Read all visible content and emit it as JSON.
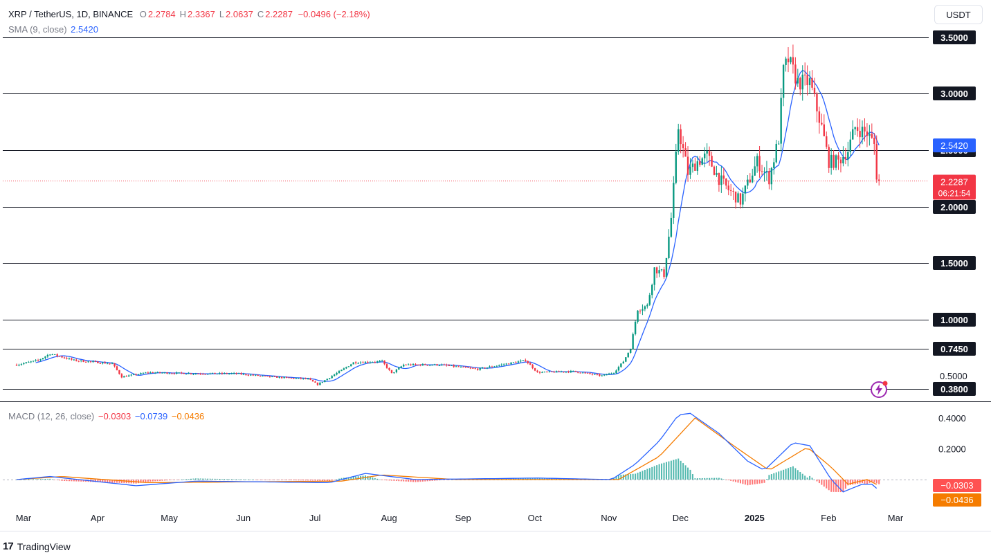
{
  "header": {
    "symbol": "XRP / TetherUS, 1D, BINANCE",
    "ohlc": [
      {
        "key": "O",
        "value": "2.2784"
      },
      {
        "key": "H",
        "value": "2.3367"
      },
      {
        "key": "L",
        "value": "2.0637"
      },
      {
        "key": "C",
        "value": "2.2287"
      }
    ],
    "change": "−0.0496 (−2.18%)",
    "currency_button": "USDT"
  },
  "sma_legend": {
    "label": "SMA (9, close)",
    "value": "2.5420"
  },
  "macd_legend": {
    "label": "MACD (12, 26, close)",
    "hist": "−0.0303",
    "macd": "−0.0739",
    "signal": "−0.0436"
  },
  "brand": "TradingView",
  "colors": {
    "up": "#089981",
    "down": "#f23645",
    "sma": "#2962ff",
    "macd": "#2962ff",
    "signal": "#f57c00"
  },
  "chart_data": [
    {
      "type": "candlestick",
      "title": "XRP / TetherUS, 1D, BINANCE",
      "x_ticks": [
        "Mar",
        "Apr",
        "May",
        "Jun",
        "Jul",
        "Aug",
        "Sep",
        "Oct",
        "Nov",
        "Dec",
        "2025",
        "Feb",
        "Mar"
      ],
      "y_ticks": [
        "3.5000",
        "3.0000",
        "2.5000",
        "2.0000",
        "1.5000",
        "1.0000",
        "0.7450",
        "0.5000",
        "0.3800"
      ],
      "horizontal_levels": [
        3.5,
        3.0,
        2.5,
        2.0,
        1.5,
        1.0,
        0.745,
        0.38
      ],
      "price_labels": {
        "sma": "2.5420",
        "last": "2.2287",
        "countdown": "06:21:54"
      },
      "last_price": 2.2287,
      "sma_value": 2.542,
      "ylim": [
        0.3,
        3.55
      ],
      "close_path": [
        [
          "2024-03-01",
          0.6
        ],
        [
          "2024-03-10",
          0.64
        ],
        [
          "2024-03-15",
          0.7
        ],
        [
          "2024-03-25",
          0.64
        ],
        [
          "2024-04-10",
          0.61
        ],
        [
          "2024-04-14",
          0.49
        ],
        [
          "2024-04-25",
          0.53
        ],
        [
          "2024-05-15",
          0.52
        ],
        [
          "2024-06-01",
          0.52
        ],
        [
          "2024-06-15",
          0.49
        ],
        [
          "2024-07-01",
          0.47
        ],
        [
          "2024-07-05",
          0.42
        ],
        [
          "2024-07-15",
          0.55
        ],
        [
          "2024-07-20",
          0.62
        ],
        [
          "2024-08-01",
          0.63
        ],
        [
          "2024-08-05",
          0.52
        ],
        [
          "2024-08-10",
          0.6
        ],
        [
          "2024-08-25",
          0.6
        ],
        [
          "2024-09-10",
          0.56
        ],
        [
          "2024-09-30",
          0.64
        ],
        [
          "2024-10-05",
          0.53
        ],
        [
          "2024-10-20",
          0.54
        ],
        [
          "2024-11-01",
          0.5
        ],
        [
          "2024-11-06",
          0.53
        ],
        [
          "2024-11-10",
          0.63
        ],
        [
          "2024-11-13",
          0.75
        ],
        [
          "2024-11-16",
          1.1
        ],
        [
          "2024-11-20",
          1.12
        ],
        [
          "2024-11-23",
          1.45
        ],
        [
          "2024-11-27",
          1.4
        ],
        [
          "2024-11-30",
          1.9
        ],
        [
          "2024-12-03",
          2.7
        ],
        [
          "2024-12-07",
          2.3
        ],
        [
          "2024-12-11",
          2.4
        ],
        [
          "2024-12-15",
          2.45
        ],
        [
          "2024-12-20",
          2.25
        ],
        [
          "2024-12-24",
          2.15
        ],
        [
          "2024-12-29",
          2.05
        ],
        [
          "2025-01-05",
          2.4
        ],
        [
          "2025-01-10",
          2.25
        ],
        [
          "2025-01-14",
          2.6
        ],
        [
          "2025-01-16",
          3.2
        ],
        [
          "2025-01-18",
          3.3
        ],
        [
          "2025-01-22",
          3.1
        ],
        [
          "2025-01-27",
          3.1
        ],
        [
          "2025-02-01",
          2.7
        ],
        [
          "2025-02-04",
          2.4
        ],
        [
          "2025-02-08",
          2.4
        ],
        [
          "2025-02-12",
          2.5
        ],
        [
          "2025-02-15",
          2.7
        ],
        [
          "2025-02-20",
          2.65
        ],
        [
          "2025-02-23",
          2.55
        ],
        [
          "2025-02-24",
          2.28
        ],
        [
          "2025-02-25",
          2.23
        ]
      ]
    },
    {
      "type": "macd",
      "title": "MACD (12, 26, close)",
      "y_ticks": [
        "0.4000",
        "0.2000"
      ],
      "value_labels": {
        "hist": "−0.0303",
        "signal": "−0.0436"
      },
      "ylim": [
        -0.12,
        0.46
      ],
      "macd_path": [
        [
          "2024-03-01",
          0.0
        ],
        [
          "2024-03-15",
          0.02
        ],
        [
          "2024-04-20",
          -0.04
        ],
        [
          "2024-05-15",
          -0.01
        ],
        [
          "2024-07-10",
          -0.02
        ],
        [
          "2024-07-25",
          0.04
        ],
        [
          "2024-08-15",
          0.0
        ],
        [
          "2024-10-05",
          0.01
        ],
        [
          "2024-11-05",
          0.0
        ],
        [
          "2024-11-15",
          0.1
        ],
        [
          "2024-11-25",
          0.25
        ],
        [
          "2024-12-03",
          0.42
        ],
        [
          "2024-12-08",
          0.43
        ],
        [
          "2024-12-20",
          0.3
        ],
        [
          "2025-01-01",
          0.12
        ],
        [
          "2025-01-08",
          0.06
        ],
        [
          "2025-01-20",
          0.24
        ],
        [
          "2025-01-27",
          0.22
        ],
        [
          "2025-02-05",
          0.0
        ],
        [
          "2025-02-10",
          -0.08
        ],
        [
          "2025-02-18",
          -0.03
        ],
        [
          "2025-02-22",
          -0.03
        ],
        [
          "2025-02-25",
          -0.07
        ]
      ],
      "signal_path": [
        [
          "2024-03-01",
          0.0
        ],
        [
          "2024-03-20",
          0.02
        ],
        [
          "2024-04-25",
          -0.02
        ],
        [
          "2024-07-15",
          -0.01
        ],
        [
          "2024-08-01",
          0.03
        ],
        [
          "2024-09-01",
          0.0
        ],
        [
          "2024-11-08",
          0.0
        ],
        [
          "2024-11-25",
          0.15
        ],
        [
          "2024-12-10",
          0.4
        ],
        [
          "2024-12-28",
          0.2
        ],
        [
          "2025-01-10",
          0.06
        ],
        [
          "2025-01-26",
          0.21
        ],
        [
          "2025-02-05",
          0.08
        ],
        [
          "2025-02-12",
          -0.03
        ],
        [
          "2025-02-20",
          0.0
        ],
        [
          "2025-02-25",
          -0.04
        ]
      ]
    }
  ]
}
